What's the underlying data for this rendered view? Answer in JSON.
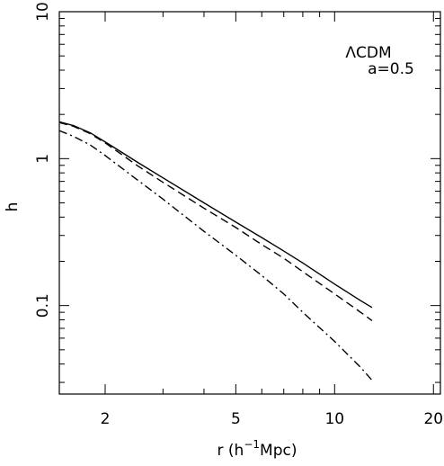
{
  "chart_data": {
    "type": "line",
    "xlabel": "r (h",
    "xlabel_sup": "−1",
    "xlabel_suffix": "Mpc)",
    "ylabel": "h",
    "xscale": "log",
    "yscale": "log",
    "xlim": [
      1.45,
      21
    ],
    "ylim": [
      0.025,
      10
    ],
    "x_ticks": [
      {
        "value": 2,
        "label": "2"
      },
      {
        "value": 5,
        "label": "5"
      },
      {
        "value": 10,
        "label": "10"
      },
      {
        "value": 20,
        "label": "20"
      }
    ],
    "y_ticks": [
      {
        "value": 0.1,
        "label": "0.1"
      },
      {
        "value": 1,
        "label": "1"
      },
      {
        "value": 10,
        "label": "10"
      }
    ],
    "annotation": [
      "ΛCDM",
      "a=0.5"
    ],
    "grid": false,
    "series": [
      {
        "style": "solid",
        "x": [
          1.45,
          1.6,
          1.8,
          2.0,
          2.5,
          3.0,
          4.0,
          5.0,
          6.0,
          7.0,
          8.0,
          10.0,
          12.0,
          13.0
        ],
        "y": [
          1.78,
          1.68,
          1.5,
          1.3,
          0.95,
          0.74,
          0.5,
          0.37,
          0.29,
          0.235,
          0.195,
          0.14,
          0.108,
          0.097
        ]
      },
      {
        "style": "dashed",
        "x": [
          1.45,
          1.6,
          1.8,
          2.0,
          2.5,
          3.0,
          4.0,
          5.0,
          6.0,
          7.0,
          8.0,
          10.0,
          12.0,
          13.0
        ],
        "y": [
          1.76,
          1.66,
          1.48,
          1.28,
          0.9,
          0.69,
          0.46,
          0.34,
          0.26,
          0.21,
          0.17,
          0.12,
          0.09,
          0.079
        ]
      },
      {
        "style": "dashdot",
        "x": [
          1.45,
          1.6,
          1.8,
          2.0,
          2.5,
          3.0,
          4.0,
          5.0,
          6.0,
          7.0,
          8.0,
          10.0,
          12.0,
          13.0
        ],
        "y": [
          1.55,
          1.42,
          1.24,
          1.05,
          0.72,
          0.53,
          0.32,
          0.22,
          0.16,
          0.12,
          0.09,
          0.057,
          0.038,
          0.031
        ]
      }
    ]
  }
}
